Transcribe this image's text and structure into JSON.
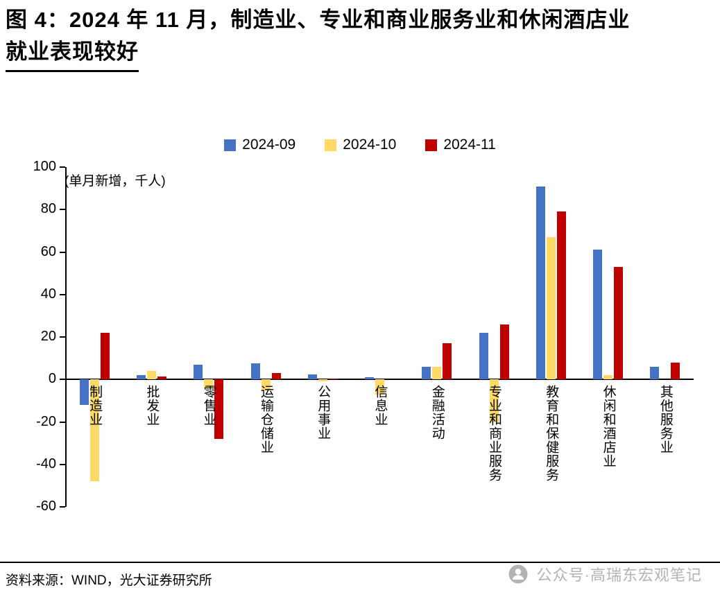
{
  "title": {
    "line1": "图 4：2024 年 11 月，制造业、专业和商业服务业和休闲酒店业",
    "line2": "就业表现较好"
  },
  "chart_data": {
    "type": "bar",
    "title": "图 4：2024 年 11 月，制造业、专业和商业服务业和休闲酒店业就业表现较好",
    "unit_label": "(单月新增，千人)",
    "categories": [
      "制造业",
      "批发业",
      "零售业",
      "运输仓储业",
      "公用事业",
      "信息业",
      "金融活动",
      "专业和商业服务",
      "教育和保健服务",
      "休闲和酒店业",
      "其他服务业"
    ],
    "series": [
      {
        "name": "2024-09",
        "color": "#4472C4",
        "values": [
          -12,
          2,
          7,
          7.5,
          2.5,
          1,
          6,
          22,
          91,
          61,
          6
        ]
      },
      {
        "name": "2024-10",
        "color": "#FFD966",
        "values": [
          -48,
          4,
          -4,
          -5,
          -1,
          -7,
          6,
          -20,
          67,
          2,
          0
        ]
      },
      {
        "name": "2024-11",
        "color": "#C00000",
        "values": [
          22,
          1.5,
          -28,
          3,
          0.3,
          0,
          17,
          26,
          79,
          53,
          8
        ]
      }
    ],
    "ylim": [
      -60,
      100
    ],
    "yticks": [
      100,
      80,
      60,
      40,
      20,
      0,
      -20,
      -40,
      -60
    ],
    "legend_position": "top",
    "grid": false
  },
  "footer": {
    "source": "资料来源：WIND，光大证券研究所",
    "watermark": "公众号·高瑞东宏观笔记"
  }
}
